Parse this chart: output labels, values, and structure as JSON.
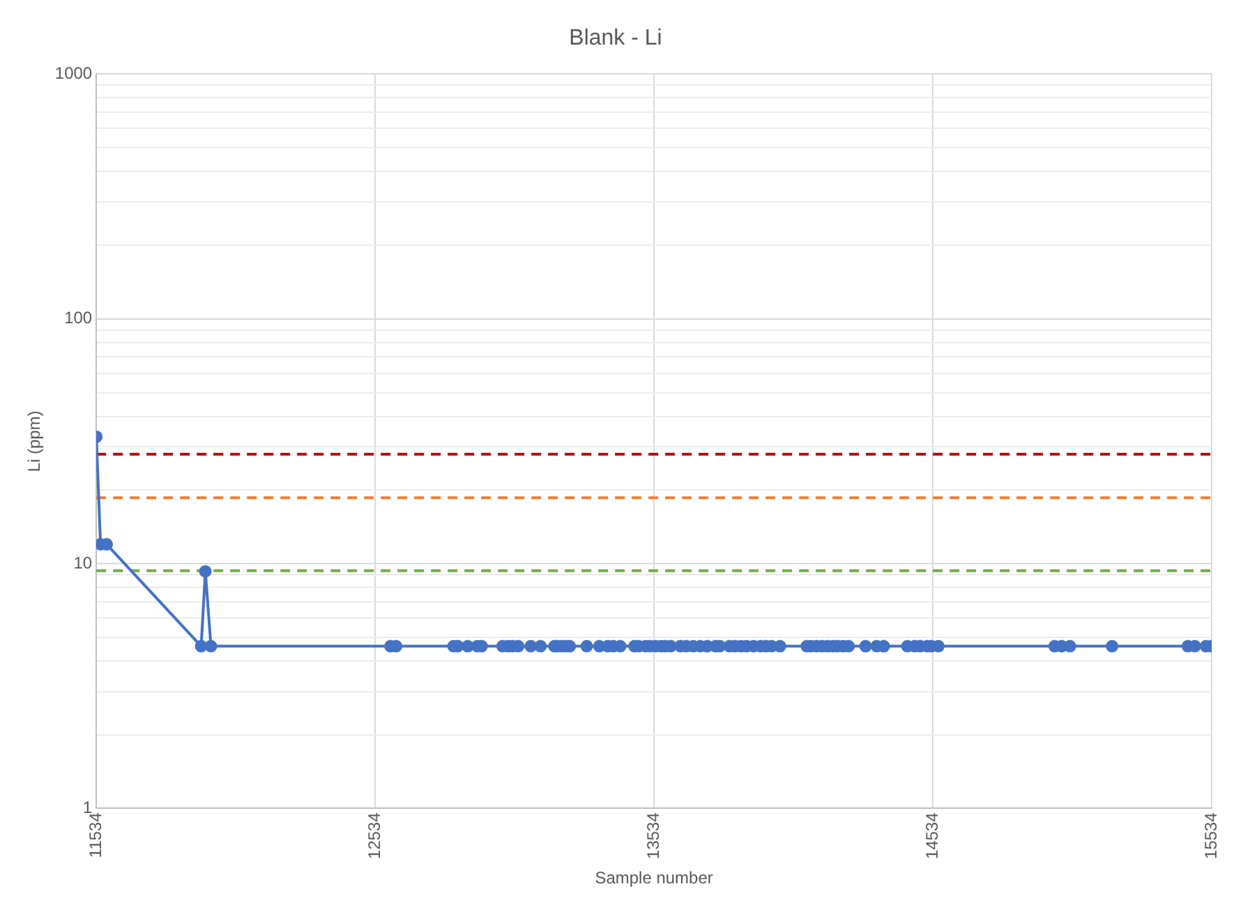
{
  "chart_data": {
    "type": "line",
    "title": "Blank - Li",
    "xlabel": "Sample number",
    "ylabel": "Li (ppm)",
    "x": [
      11534,
      11549,
      11571,
      11910,
      11925,
      11945,
      12589,
      12609,
      12815,
      12830,
      12866,
      12901,
      12916,
      12991,
      13011,
      13026,
      13047,
      13092,
      13127,
      13177,
      13187,
      13202,
      13217,
      13232,
      13293,
      13338,
      13368,
      13388,
      13413,
      13464,
      13479,
      13504,
      13519,
      13539,
      13559,
      13574,
      13594,
      13629,
      13650,
      13675,
      13700,
      13725,
      13755,
      13770,
      13805,
      13825,
      13846,
      13866,
      13891,
      13916,
      13936,
      13956,
      13986,
      14082,
      14097,
      14117,
      14137,
      14157,
      14177,
      14192,
      14212,
      14232,
      14293,
      14333,
      14358,
      14443,
      14469,
      14489,
      14514,
      14529,
      14554,
      14971,
      14996,
      15026,
      15177,
      15449,
      15474,
      15514,
      15534
    ],
    "series": [
      {
        "color": "#4472c4",
        "values": [
          33,
          12,
          12,
          4.6,
          9.3,
          4.6,
          4.6,
          4.6,
          4.6,
          4.6,
          4.6,
          4.6,
          4.6,
          4.6,
          4.6,
          4.6,
          4.6,
          4.6,
          4.6,
          4.6,
          4.6,
          4.6,
          4.6,
          4.6,
          4.6,
          4.6,
          4.6,
          4.6,
          4.6,
          4.6,
          4.6,
          4.6,
          4.6,
          4.6,
          4.6,
          4.6,
          4.6,
          4.6,
          4.6,
          4.6,
          4.6,
          4.6,
          4.6,
          4.6,
          4.6,
          4.6,
          4.6,
          4.6,
          4.6,
          4.6,
          4.6,
          4.6,
          4.6,
          4.6,
          4.6,
          4.6,
          4.6,
          4.6,
          4.6,
          4.6,
          4.6,
          4.6,
          4.6,
          4.6,
          4.6,
          4.6,
          4.6,
          4.6,
          4.6,
          4.6,
          4.6,
          4.6,
          4.6,
          4.6,
          4.6,
          4.6,
          4.6,
          4.6,
          4.6
        ]
      }
    ],
    "xlim": [
      11534,
      15534
    ],
    "xticks": [
      11534,
      12534,
      13534,
      14534,
      15534
    ],
    "ylim": [
      1,
      1000
    ],
    "log": "y",
    "yticks": [
      1,
      {
        "value": 2,
        "label": null
      },
      {
        "value": 3,
        "label": null
      },
      {
        "value": 4,
        "label": null
      },
      {
        "value": 5,
        "label": null
      },
      {
        "value": 6,
        "label": null
      },
      {
        "value": 7,
        "label": null
      },
      {
        "value": 8,
        "label": null
      },
      {
        "value": 9,
        "label": null
      },
      10,
      {
        "value": 20,
        "label": null
      },
      {
        "value": 30,
        "label": null
      },
      {
        "value": 40,
        "label": null
      },
      {
        "value": 50,
        "label": null
      },
      {
        "value": 60,
        "label": null
      },
      {
        "value": 70,
        "label": null
      },
      {
        "value": 80,
        "label": null
      },
      {
        "value": 90,
        "label": null
      },
      100,
      {
        "value": 200,
        "label": null
      },
      {
        "value": 300,
        "label": null
      },
      {
        "value": 400,
        "label": null
      },
      {
        "value": 500,
        "label": null
      },
      {
        "value": 600,
        "label": null
      },
      {
        "value": 700,
        "label": null
      },
      {
        "value": 800,
        "label": null
      },
      {
        "value": 900,
        "label": null
      },
      1000
    ],
    "ref_lines": [
      {
        "axis": "y",
        "value": 28,
        "color": "#c00000",
        "line_style": "dashed"
      },
      {
        "axis": "y",
        "value": 18.6,
        "color": "#ed7d31",
        "line_style": "dashed"
      },
      {
        "axis": "y",
        "value": 9.35,
        "color": "#70ad47",
        "line_style": "dashed"
      }
    ],
    "grid": true,
    "legend": false,
    "marker": "circle",
    "line_style": "solid"
  }
}
